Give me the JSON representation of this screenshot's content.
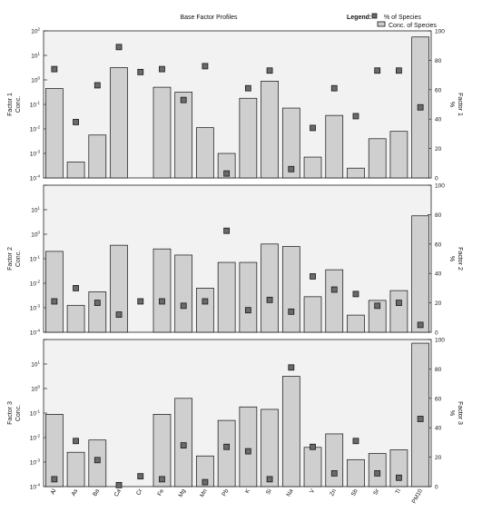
{
  "title": "Base Factor Profiles",
  "legend": {
    "label": "Legend:",
    "items": [
      {
        "name": "% of Species",
        "kind": "marker"
      },
      {
        "name": "Conc. of Species",
        "kind": "bar"
      }
    ],
    "placement": "top-right"
  },
  "colors": {
    "plot_background": "#f2f2f2",
    "bar_fill": "#cfcfcf",
    "bar_stroke": "#111111",
    "marker_fill": "#6a6a6a",
    "marker_stroke": "#1a1a1a"
  },
  "chart_data": [
    {
      "type": "bar",
      "ylabel_left": [
        "Factor 1",
        "Conc."
      ],
      "ylabel_right": [
        "Factor 1",
        "%"
      ],
      "yscale_left": "log",
      "ylim_left_exponent": [
        -4,
        2
      ],
      "ylim_right": [
        0,
        100
      ],
      "right_ticks": [
        0,
        20,
        40,
        60,
        80,
        100
      ],
      "categories": [
        "Al",
        "As",
        "Ba",
        "Ca",
        "Cr",
        "Fe",
        "Mg",
        "Mn",
        "Pb",
        "K",
        "Si",
        "Na",
        "V",
        "Zn",
        "Sb",
        "Sr",
        "Ti",
        "PM10"
      ],
      "conc_exponent": [
        -0.35,
        -3.35,
        -2.25,
        0.5,
        null,
        -0.3,
        -0.5,
        -1.95,
        -3.0,
        -0.75,
        -0.05,
        -1.15,
        -3.15,
        -1.45,
        -3.6,
        -2.4,
        -2.1,
        1.75
      ],
      "percent": [
        74,
        38,
        63,
        89,
        72,
        74,
        53,
        76,
        3,
        61,
        73,
        6,
        34,
        61,
        42,
        73,
        73,
        48
      ]
    },
    {
      "type": "bar",
      "ylabel_left": [
        "Factor 2",
        "Conc."
      ],
      "ylabel_right": [
        "Factor 2",
        "%"
      ],
      "yscale_left": "log",
      "ylim_left_exponent": [
        -4,
        2
      ],
      "ylim_right": [
        0,
        100
      ],
      "right_ticks": [
        0,
        20,
        40,
        60,
        80,
        100
      ],
      "categories": [
        "Al",
        "As",
        "Ba",
        "Ca",
        "Cr",
        "Fe",
        "Mg",
        "Mn",
        "Pb",
        "K",
        "Si",
        "Na",
        "V",
        "Zn",
        "Sb",
        "Sr",
        "Ti",
        "PM10"
      ],
      "conc_exponent": [
        -0.7,
        -2.9,
        -2.35,
        -0.45,
        null,
        -0.6,
        -0.85,
        -2.2,
        -1.15,
        -1.15,
        -0.4,
        -0.5,
        -2.55,
        -1.45,
        -3.3,
        -2.7,
        -2.3,
        0.75
      ],
      "percent": [
        21,
        30,
        20,
        12,
        21,
        21,
        18,
        21,
        69,
        15,
        22,
        14,
        38,
        29,
        26,
        18,
        20,
        5
      ]
    },
    {
      "type": "bar",
      "ylabel_left": [
        "Factor 3",
        "Conc."
      ],
      "ylabel_right": [
        "Factor 3",
        "%"
      ],
      "yscale_left": "log",
      "ylim_left_exponent": [
        -4,
        2
      ],
      "ylim_right": [
        0,
        100
      ],
      "right_ticks": [
        0,
        20,
        40,
        60,
        80,
        100
      ],
      "categories": [
        "Al",
        "As",
        "Ba",
        "Ca",
        "Cr",
        "Fe",
        "Mg",
        "Mn",
        "Pb",
        "K",
        "Si",
        "Na",
        "V",
        "Zn",
        "Sb",
        "Sr",
        "Ti",
        "PM10"
      ],
      "conc_exponent": [
        -1.05,
        -2.6,
        -2.1,
        null,
        null,
        -1.05,
        -0.4,
        -2.75,
        -1.3,
        -0.75,
        -0.85,
        0.5,
        -2.4,
        -1.85,
        -2.9,
        -2.65,
        -2.5,
        1.85
      ],
      "percent": [
        5,
        31,
        18,
        1,
        7,
        5,
        28,
        3,
        27,
        24,
        5,
        81,
        27,
        9,
        31,
        9,
        6,
        46
      ]
    }
  ]
}
